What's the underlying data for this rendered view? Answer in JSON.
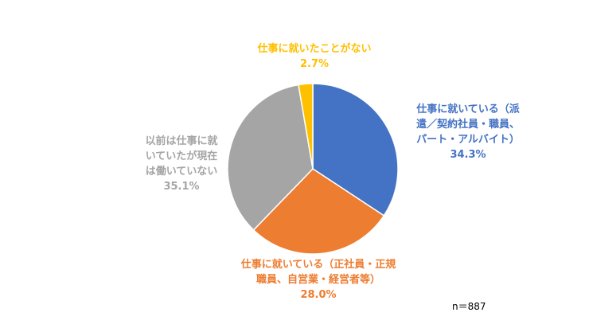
{
  "chart_data": {
    "type": "pie",
    "slices": [
      {
        "label_lines": [
          "仕事に就いている（派",
          "遣／契約社員・職員、",
          "パート・アルバイト）"
        ],
        "value": 34.3,
        "value_text": "34.3%",
        "color": "#4472C4"
      },
      {
        "label_lines": [
          "仕事に就いている（正社員・正規",
          "職員、自営業・経営者等）"
        ],
        "value": 28.0,
        "value_text": "28.0%",
        "color": "#ED7D31"
      },
      {
        "label_lines": [
          "以前は仕事に就",
          "いていたが現在",
          "は働いていない"
        ],
        "value": 35.1,
        "value_text": "35.1%",
        "color": "#A5A5A5"
      },
      {
        "label_lines": [
          "仕事に就いたことがない"
        ],
        "value": 2.7,
        "value_text": "2.7%",
        "color": "#FFC000"
      }
    ],
    "start_angle": "12 o'clock",
    "direction": "clockwise",
    "note": "n＝887"
  }
}
